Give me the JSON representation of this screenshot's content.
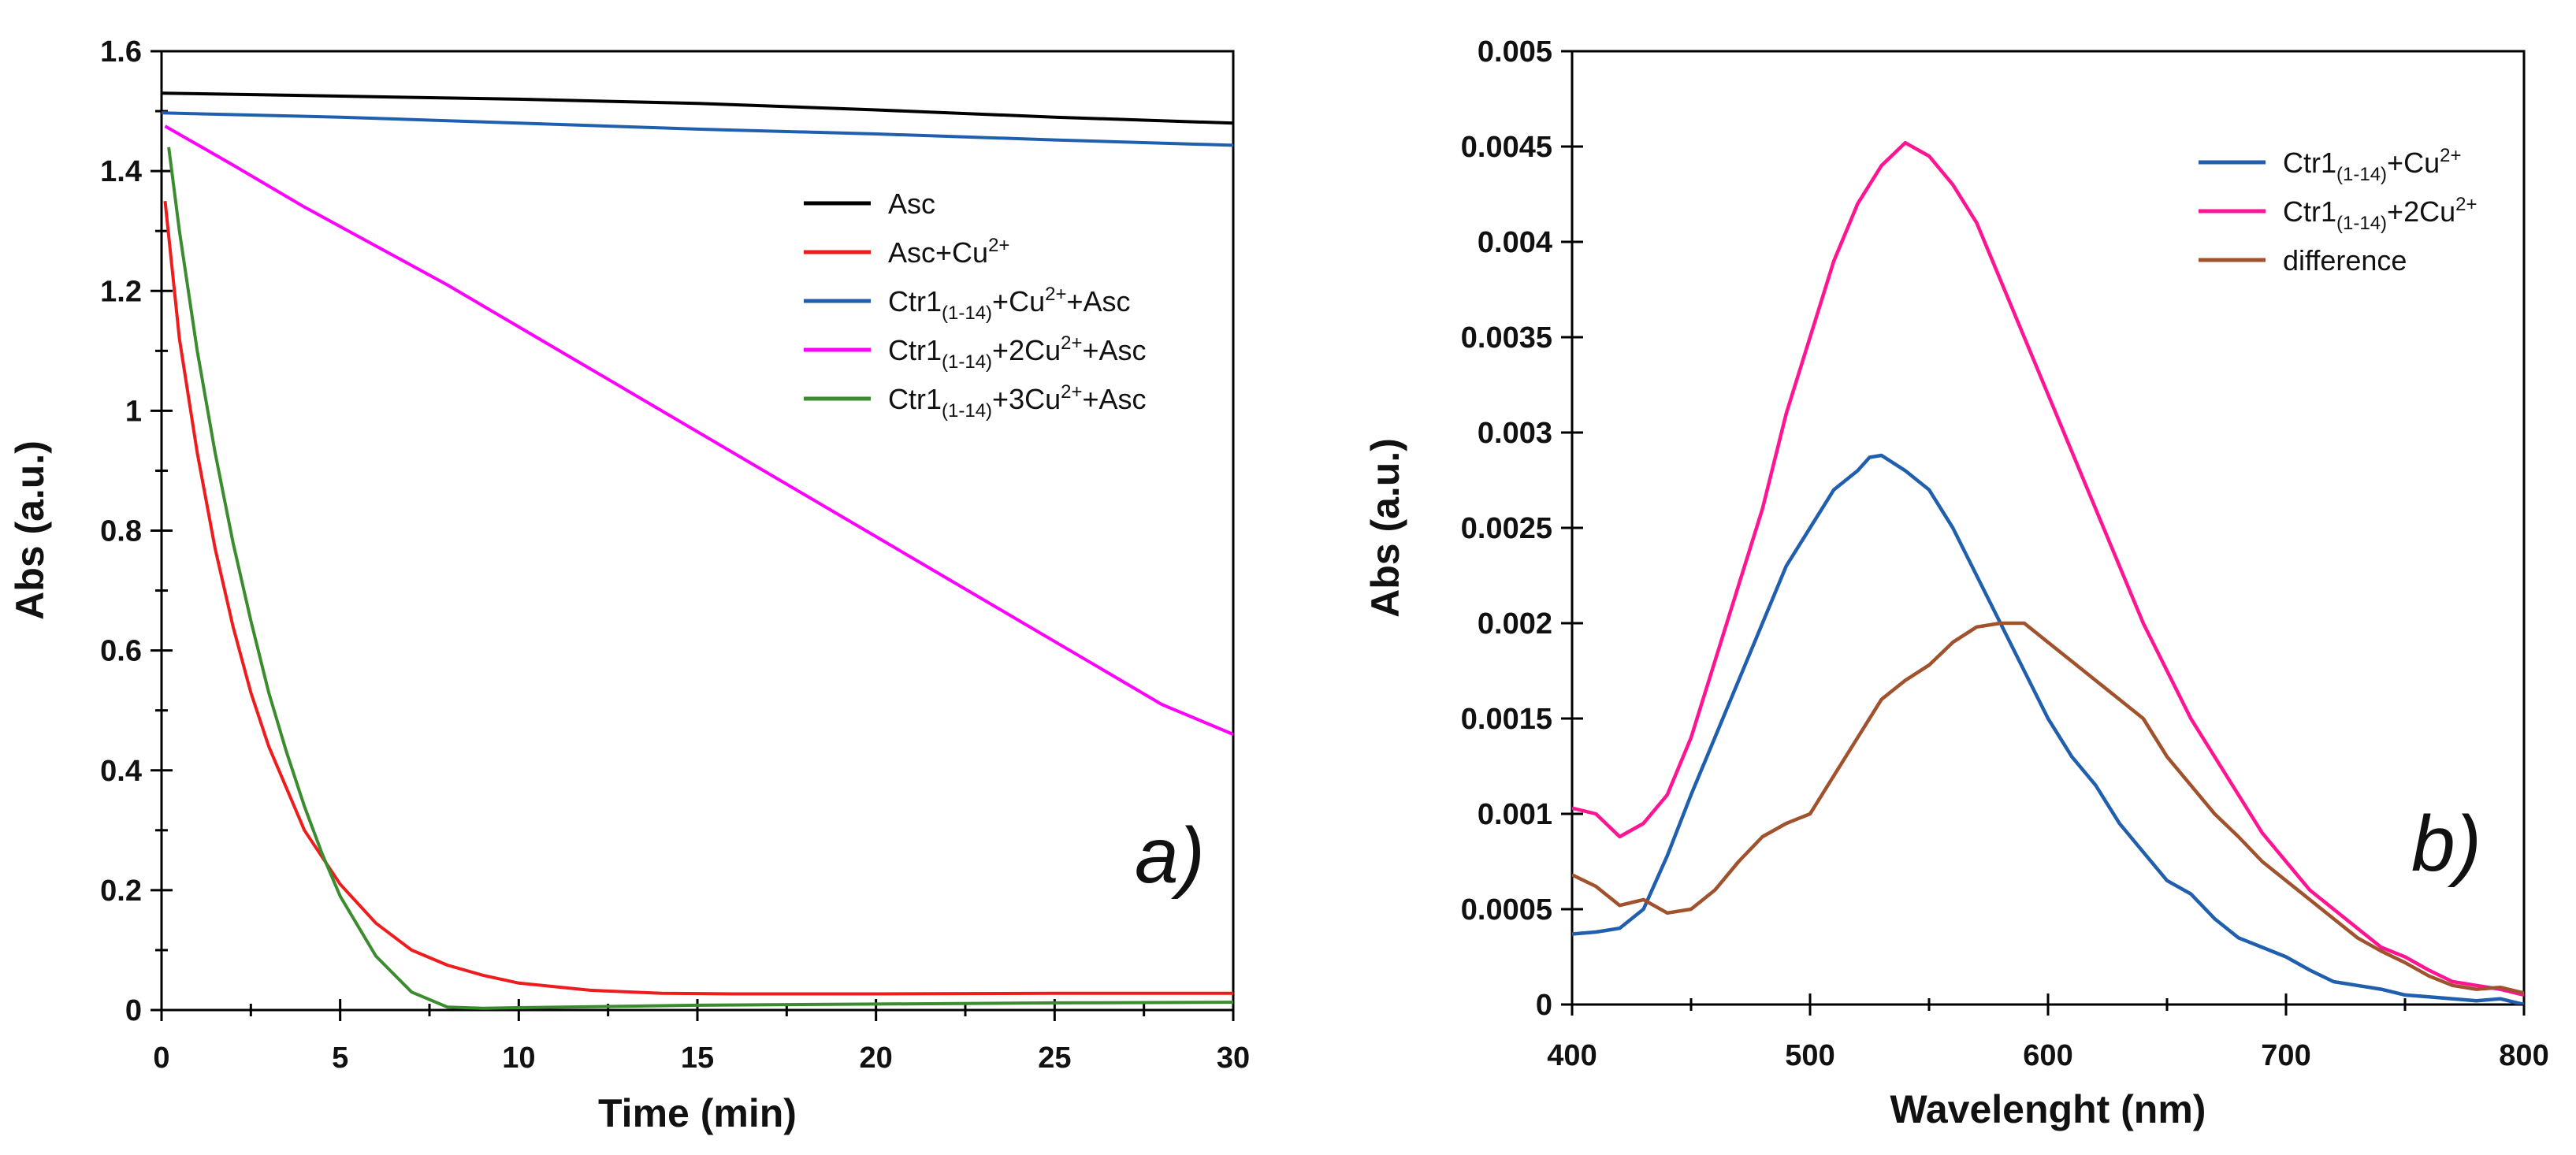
{
  "chart_data": [
    {
      "type": "line",
      "panel_label": "a)",
      "xlabel": "Time (min)",
      "ylabel": "Abs (a.u.)",
      "xlim": [
        0,
        30
      ],
      "ylim": [
        0,
        1.6
      ],
      "x_ticks": [
        0,
        5,
        10,
        15,
        20,
        25,
        30
      ],
      "x_tick_labels": [
        "0",
        "5",
        "10",
        "15",
        "20",
        "25",
        "30"
      ],
      "y_ticks": [
        0,
        0.2,
        0.4,
        0.6,
        0.8,
        1,
        1.2,
        1.4,
        1.6
      ],
      "y_tick_labels": [
        "0",
        "0.2",
        "0.4",
        "0.6",
        "0.8",
        "1",
        "1.2",
        "1.4",
        "1.6"
      ],
      "grid": false,
      "legend_position": "top-right",
      "series": [
        {
          "name": "Asc",
          "legend": {
            "base": "Asc",
            "sub": "",
            "sup": "",
            "tail": ""
          },
          "color": "#000000",
          "x": [
            0,
            5,
            10,
            15,
            20,
            25,
            30
          ],
          "y": [
            1.53,
            1.525,
            1.52,
            1.513,
            1.502,
            1.49,
            1.48
          ]
        },
        {
          "name": "Asc+Cu2+",
          "legend": {
            "base": "Asc+Cu",
            "sub": "",
            "sup": "2+",
            "tail": ""
          },
          "color": "#ee1c1c",
          "x": [
            0.1,
            0.5,
            1,
            1.5,
            2,
            2.5,
            3,
            4,
            5,
            6,
            7,
            8,
            9,
            10,
            12,
            14,
            16,
            20,
            25,
            30
          ],
          "y": [
            1.35,
            1.12,
            0.93,
            0.77,
            0.64,
            0.53,
            0.44,
            0.3,
            0.21,
            0.145,
            0.1,
            0.075,
            0.058,
            0.045,
            0.033,
            0.028,
            0.027,
            0.027,
            0.028,
            0.028
          ]
        },
        {
          "name": "Ctr1(1-14)+Cu2++Asc",
          "legend": {
            "base": "Ctr1",
            "sub": "(1-14)",
            "sup": "2+",
            "mid": "+Cu",
            "tail": "+Asc"
          },
          "color": "#1f5fad",
          "x": [
            0,
            5,
            10,
            15,
            20,
            25,
            30
          ],
          "y": [
            1.497,
            1.49,
            1.48,
            1.47,
            1.462,
            1.452,
            1.443
          ]
        },
        {
          "name": "Ctr1(1-14)+2Cu2++Asc",
          "legend": {
            "base": "Ctr1",
            "sub": "(1-14)",
            "sup": "2+",
            "mid": "+2Cu",
            "tail": "+Asc"
          },
          "color": "#ff00ff",
          "x": [
            0.1,
            2,
            4,
            6,
            8,
            10,
            12,
            14,
            16,
            18,
            20,
            22,
            24,
            26,
            28,
            30
          ],
          "y": [
            1.475,
            1.41,
            1.34,
            1.275,
            1.21,
            1.14,
            1.07,
            1.0,
            0.93,
            0.86,
            0.79,
            0.72,
            0.65,
            0.58,
            0.51,
            0.46
          ]
        },
        {
          "name": "Ctr1(1-14)+3Cu2++Asc",
          "legend": {
            "base": "Ctr1",
            "sub": "(1-14)",
            "sup": "2+",
            "mid": "+3Cu",
            "tail": "+Asc"
          },
          "color": "#3a8c2f",
          "x": [
            0.2,
            0.5,
            1,
            1.5,
            2,
            2.5,
            3,
            3.5,
            4,
            4.5,
            5,
            6,
            7,
            8,
            9,
            10,
            15,
            20,
            25,
            30
          ],
          "y": [
            1.44,
            1.3,
            1.1,
            0.93,
            0.78,
            0.65,
            0.53,
            0.43,
            0.34,
            0.26,
            0.19,
            0.09,
            0.03,
            0.005,
            0.003,
            0.004,
            0.008,
            0.01,
            0.012,
            0.013
          ]
        }
      ]
    },
    {
      "type": "line",
      "panel_label": "b)",
      "xlabel": "Wavelenght (nm)",
      "ylabel": "Abs (a.u.)",
      "xlim": [
        400,
        800
      ],
      "ylim": [
        0,
        0.005
      ],
      "x_ticks": [
        400,
        500,
        600,
        700,
        800
      ],
      "x_tick_labels": [
        "400",
        "500",
        "600",
        "700",
        "800"
      ],
      "y_ticks": [
        0,
        0.0005,
        0.001,
        0.0015,
        0.002,
        0.0025,
        0.003,
        0.0035,
        0.004,
        0.0045,
        0.005
      ],
      "y_tick_labels": [
        "0",
        "0.0005",
        "0.001",
        "0.0015",
        "0.002",
        "0.0025",
        "0.003",
        "0.0035",
        "0.004",
        "0.0045",
        "0.005"
      ],
      "grid": false,
      "legend_position": "top-right",
      "series": [
        {
          "name": "Ctr1(1-14)+Cu2+",
          "legend": {
            "base": "Ctr1",
            "sub": "(1-14)",
            "sup": "2+",
            "mid": "+Cu",
            "tail": ""
          },
          "color": "#1f5fad",
          "x": [
            400,
            410,
            420,
            430,
            440,
            450,
            460,
            470,
            480,
            490,
            500,
            510,
            520,
            525,
            530,
            540,
            550,
            560,
            570,
            580,
            590,
            600,
            610,
            620,
            630,
            640,
            650,
            660,
            670,
            680,
            690,
            700,
            710,
            720,
            730,
            740,
            750,
            760,
            770,
            780,
            790,
            800
          ],
          "y": [
            0.00037,
            0.00038,
            0.0004,
            0.0005,
            0.00078,
            0.0011,
            0.0014,
            0.0017,
            0.002,
            0.0023,
            0.0025,
            0.0027,
            0.0028,
            0.00287,
            0.00288,
            0.0028,
            0.0027,
            0.0025,
            0.00225,
            0.002,
            0.00175,
            0.0015,
            0.0013,
            0.00115,
            0.00095,
            0.0008,
            0.00065,
            0.00058,
            0.00045,
            0.00035,
            0.0003,
            0.00025,
            0.00018,
            0.00012,
            0.0001,
            8e-05,
            5e-05,
            4e-05,
            3e-05,
            2e-05,
            3e-05,
            0.0
          ]
        },
        {
          "name": "Ctr1(1-14)+2Cu2+",
          "legend": {
            "base": "Ctr1",
            "sub": "(1-14)",
            "sup": "2+",
            "mid": "+2Cu",
            "tail": ""
          },
          "color": "#ff1493",
          "x": [
            400,
            410,
            420,
            430,
            440,
            450,
            460,
            470,
            480,
            490,
            500,
            510,
            520,
            530,
            540,
            550,
            560,
            570,
            580,
            590,
            600,
            610,
            620,
            630,
            640,
            650,
            660,
            670,
            680,
            690,
            700,
            710,
            720,
            730,
            740,
            750,
            760,
            770,
            780,
            790,
            800
          ],
          "y": [
            0.00103,
            0.001,
            0.00088,
            0.00095,
            0.0011,
            0.0014,
            0.0018,
            0.0022,
            0.0026,
            0.0031,
            0.0035,
            0.0039,
            0.0042,
            0.0044,
            0.00452,
            0.00445,
            0.0043,
            0.0041,
            0.0038,
            0.0035,
            0.0032,
            0.0029,
            0.0026,
            0.0023,
            0.002,
            0.00175,
            0.0015,
            0.0013,
            0.0011,
            0.0009,
            0.00075,
            0.0006,
            0.0005,
            0.0004,
            0.0003,
            0.00025,
            0.00018,
            0.00012,
            0.0001,
            8e-05,
            5e-05
          ]
        },
        {
          "name": "difference",
          "legend": {
            "base": "difference",
            "sub": "",
            "sup": "",
            "tail": ""
          },
          "color": "#a0522d",
          "x": [
            400,
            410,
            420,
            430,
            440,
            450,
            460,
            470,
            480,
            490,
            500,
            510,
            520,
            530,
            540,
            550,
            560,
            570,
            580,
            590,
            600,
            610,
            620,
            630,
            640,
            650,
            660,
            670,
            680,
            690,
            700,
            710,
            720,
            730,
            740,
            750,
            760,
            770,
            780,
            790,
            800
          ],
          "y": [
            0.00068,
            0.00062,
            0.00052,
            0.00055,
            0.00048,
            0.0005,
            0.0006,
            0.00075,
            0.00088,
            0.00095,
            0.001,
            0.0012,
            0.0014,
            0.0016,
            0.0017,
            0.00178,
            0.0019,
            0.00198,
            0.002,
            0.002,
            0.0019,
            0.0018,
            0.0017,
            0.0016,
            0.0015,
            0.0013,
            0.00115,
            0.001,
            0.00088,
            0.00075,
            0.00065,
            0.00055,
            0.00045,
            0.00035,
            0.00028,
            0.00022,
            0.00015,
            0.0001,
            8e-05,
            9e-05,
            6e-05
          ]
        }
      ]
    }
  ]
}
